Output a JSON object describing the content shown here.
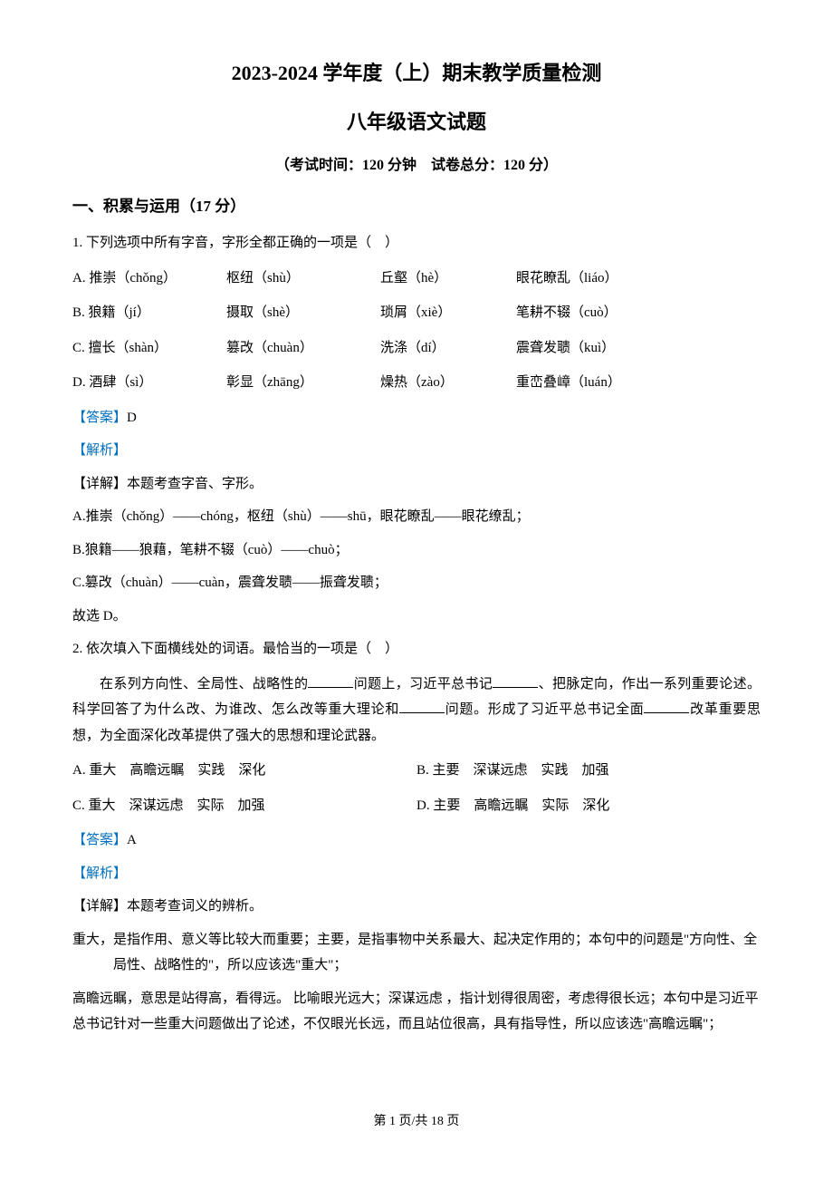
{
  "header": {
    "title_main": "2023-2024 学年度（上）期末教学质量检测",
    "title_sub": "八年级语文试题",
    "exam_info": "（考试时间：120 分钟　试卷总分：120 分）"
  },
  "section1": {
    "header": "一、积累与运用（17 分）"
  },
  "q1": {
    "stem": "1. 下列选项中所有字音，字形全都正确的一项是（　）",
    "rowA": {
      "c1": "A. 推崇（chǒng）",
      "c2": "枢纽（shù）",
      "c3": "丘壑（hè）",
      "c4": "眼花瞭乱（liáo）"
    },
    "rowB": {
      "c1": "B. 狼籍（jí）",
      "c2": "摄取（shè）",
      "c3": "琐屑（xiè）",
      "c4": "笔耕不辍（cuò）"
    },
    "rowC": {
      "c1": "C. 擅长（shàn）",
      "c2": "篡改（chuàn）",
      "c3": "洗涤（dí）",
      "c4": "震聋发聩（kuì）"
    },
    "rowD": {
      "c1": "D. 酒肆（sì）",
      "c2": "彰显（zhāng）",
      "c3": "燥热（zào）",
      "c4": "重峦叠嶂（luán）"
    },
    "answer_label": "【答案】",
    "answer_value": "D",
    "analysis_label": "【解析】",
    "detail_intro": "【详解】本题考查字音、字形。",
    "detail_a": "A.推崇（chǒng）——chóng，枢纽（shù）——shū，眼花瞭乱——眼花缭乱；",
    "detail_b": "B.狼籍——狼藉，笔耕不辍（cuò）——chuò；",
    "detail_c": "C.篡改（chuàn）——cuàn，震聋发聩——振聋发聩；",
    "detail_end": "故选 D。"
  },
  "q2": {
    "stem": "2. 依次填入下面横线处的词语。最恰当的一项是（　）",
    "passage_1": "在系列方向性、全局性、战略性的",
    "passage_2": "问题上，习近平总书记",
    "passage_3": "、把脉定向，作出一系列重要论述。科学回答了为什么改、为谁改、怎么改等重大理论和",
    "passage_4": "问题。形成了习近平总书记全面",
    "passage_5": "改革重要思想，为全面深化改革提供了强大的思想和理论武器。",
    "optA": "A. 重大　高瞻远瞩　实践　深化",
    "optB": "B. 主要　深谋远虑　实践　加强",
    "optC": "C. 重大　深谋远虑　实际　加强",
    "optD": "D. 主要　高瞻远瞩　实际　深化",
    "answer_label": "【答案】",
    "answer_value": "A",
    "analysis_label": "【解析】",
    "detail_intro": "【详解】本题考查词义的辨析。",
    "detail_p1": "重大，是指作用、意义等比较大而重要；主要，是指事物中关系最大、起决定作用的；本句中的问题是\"方向性、全局性、战略性的\"，所以应该选\"重大\"；",
    "detail_p2": "高瞻远瞩，意思是站得高，看得远。 比喻眼光远大；深谋远虑 ，指计划得很周密，考虑得很长远；本句中是习近平总书记针对一些重大问题做出了论述，不仅眼光长远，而且站位很高，具有指导性，所以应该选\"高瞻远瞩\"；"
  },
  "footer": {
    "text": "第 1 页/共 18 页"
  }
}
